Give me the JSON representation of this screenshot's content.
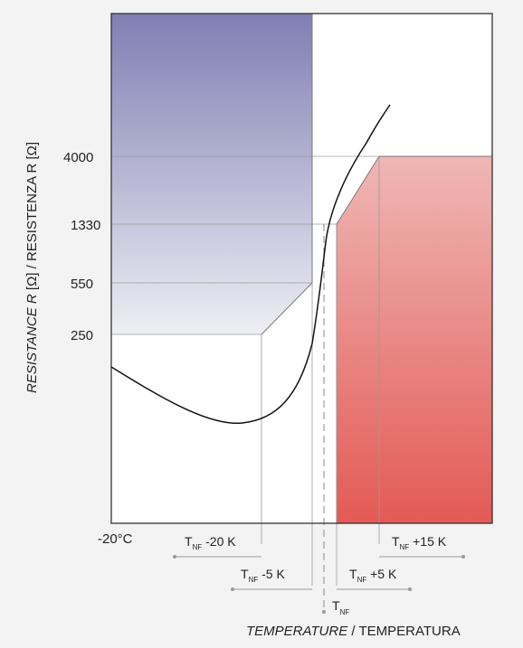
{
  "chart_data": {
    "type": "area",
    "x_axis": {
      "start_label": "-20°C",
      "title_italic": "TEMPERATURE",
      "title_regular": " / TEMPERATURA"
    },
    "y_axis": {
      "title_italic": "RESISTANCE R",
      "title_regular": " [Ω] / RESISTENZA R [Ω]",
      "tick_labels": [
        "4000",
        "1330",
        "550",
        "250"
      ]
    },
    "reference_temperature": {
      "symbol": "T",
      "subscript": "NF"
    },
    "offset_markers": [
      {
        "sub": "NF",
        "text": " -20 K",
        "offset_k": -20
      },
      {
        "sub": "NF",
        "text": " -5 K",
        "offset_k": -5
      },
      {
        "sub": "NF",
        "text": " +5 K",
        "offset_k": 5
      },
      {
        "sub": "NF",
        "text": " +15 K",
        "offset_k": 15
      }
    ],
    "regions": [
      {
        "name": "low-temperature zone",
        "color_top": "#7f7fb4",
        "color_bottom": "#eeeef4"
      },
      {
        "name": "high-temperature zone",
        "color_top": "#efb7b5",
        "color_bottom": "#e35a55"
      }
    ],
    "grid": false
  }
}
